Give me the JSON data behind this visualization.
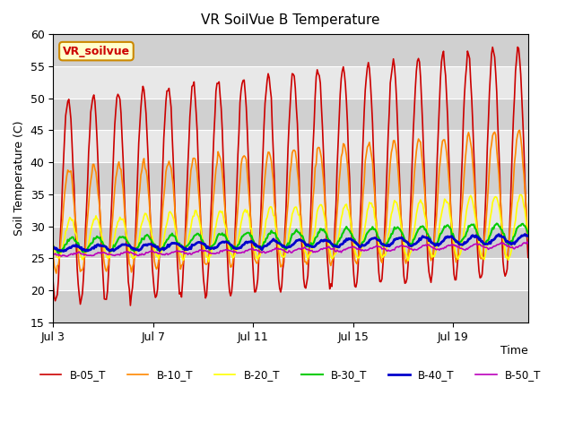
{
  "title": "VR SoilVue B Temperature",
  "xlabel": "Time",
  "ylabel": "Soil Temperature (C)",
  "ylim": [
    15,
    60
  ],
  "yticks": [
    15,
    20,
    25,
    30,
    35,
    40,
    45,
    50,
    55,
    60
  ],
  "xtick_labels": [
    "Jul 3",
    "Jul 7",
    "Jul 11",
    "Jul 15",
    "Jul 19"
  ],
  "xtick_positions": [
    3,
    7,
    11,
    15,
    19
  ],
  "series_colors": {
    "B-05_T": "#cc0000",
    "B-10_T": "#ff8800",
    "B-20_T": "#ffff00",
    "B-30_T": "#00cc00",
    "B-40_T": "#0000cc",
    "B-50_T": "#bb00bb"
  },
  "series_linewidths": {
    "B-05_T": 1.2,
    "B-10_T": 1.2,
    "B-20_T": 1.2,
    "B-30_T": 1.5,
    "B-40_T": 2.0,
    "B-50_T": 1.2
  },
  "annotation_text": "VR_soilvue",
  "annotation_color": "#cc0000",
  "annotation_bg": "#ffffcc",
  "background_color": "#ffffff",
  "plot_bg_color": "#e8e8e8",
  "stripe_color": "#d0d0d0",
  "n_days": 19,
  "samples_per_day": 24,
  "start_day": 3
}
